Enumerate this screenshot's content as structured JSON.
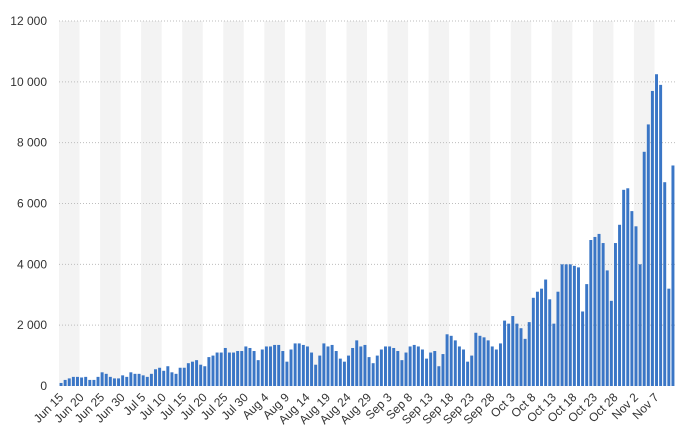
{
  "chart_data": {
    "type": "bar",
    "title": "",
    "xlabel": "",
    "ylabel": "",
    "ylim": [
      0,
      12000
    ],
    "yticks": [
      0,
      2000,
      4000,
      6000,
      8000,
      10000,
      12000
    ],
    "ytick_labels": [
      "0",
      "2 000",
      "4 000",
      "6 000",
      "8 000",
      "10 000",
      "12 000"
    ],
    "grid": true,
    "bar_color": "#3a76c6",
    "x_tick_labels": [
      {
        "label": "Jun 15",
        "index": 0
      },
      {
        "label": "Jun 20",
        "index": 5
      },
      {
        "label": "Jun 25",
        "index": 10
      },
      {
        "label": "Jun 30",
        "index": 15
      },
      {
        "label": "Jul 5",
        "index": 20
      },
      {
        "label": "Jul 10",
        "index": 25
      },
      {
        "label": "Jul 15",
        "index": 30
      },
      {
        "label": "Jul 20",
        "index": 35
      },
      {
        "label": "Jul 25",
        "index": 40
      },
      {
        "label": "Jul 30",
        "index": 45
      },
      {
        "label": "Aug 4",
        "index": 50
      },
      {
        "label": "Aug 9",
        "index": 55
      },
      {
        "label": "Aug 14",
        "index": 60
      },
      {
        "label": "Aug 19",
        "index": 65
      },
      {
        "label": "Aug 24",
        "index": 70
      },
      {
        "label": "Aug 29",
        "index": 75
      },
      {
        "label": "Sep 3",
        "index": 80
      },
      {
        "label": "Sep 8",
        "index": 85
      },
      {
        "label": "Sep 13",
        "index": 90
      },
      {
        "label": "Sep 18",
        "index": 95
      },
      {
        "label": "Sep 23",
        "index": 100
      },
      {
        "label": "Sep 28",
        "index": 105
      },
      {
        "label": "Oct 3",
        "index": 110
      },
      {
        "label": "Oct 8",
        "index": 115
      },
      {
        "label": "Oct 13",
        "index": 120
      },
      {
        "label": "Oct 18",
        "index": 125
      },
      {
        "label": "Oct 23",
        "index": 130
      },
      {
        "label": "Oct 28",
        "index": 135
      },
      {
        "label": "Nov 2",
        "index": 140
      },
      {
        "label": "Nov 7",
        "index": 145
      }
    ],
    "values": [
      100,
      200,
      250,
      300,
      300,
      280,
      300,
      200,
      200,
      300,
      450,
      400,
      300,
      250,
      250,
      350,
      300,
      450,
      400,
      400,
      350,
      300,
      400,
      550,
      600,
      500,
      650,
      450,
      400,
      600,
      600,
      750,
      800,
      850,
      700,
      650,
      950,
      1000,
      1100,
      1100,
      1250,
      1100,
      1100,
      1150,
      1150,
      1300,
      1250,
      1150,
      850,
      1200,
      1300,
      1300,
      1350,
      1350,
      1150,
      800,
      1200,
      1400,
      1400,
      1350,
      1300,
      1100,
      700,
      1000,
      1400,
      1300,
      1350,
      1150,
      900,
      800,
      1000,
      1250,
      1500,
      1300,
      1350,
      950,
      750,
      1000,
      1200,
      1300,
      1300,
      1250,
      1150,
      850,
      1100,
      1300,
      1350,
      1300,
      1200,
      900,
      1100,
      1150,
      650,
      1050,
      1700,
      1650,
      1500,
      1300,
      1200,
      800,
      1000,
      1750,
      1650,
      1600,
      1500,
      1300,
      1200,
      1400,
      2150,
      2050,
      2300,
      2050,
      1900,
      1550,
      2100,
      2900,
      3100,
      3200,
      3500,
      2850,
      2050,
      3100,
      4000,
      4000,
      4000,
      3950,
      3900,
      2450,
      3350,
      4800,
      4900,
      5000,
      4700,
      3800,
      2800,
      4700,
      5300,
      6450,
      6500,
      5750,
      5250,
      4000,
      7700,
      8600,
      9700,
      10250,
      9900,
      6700,
      3200,
      7250
    ]
  }
}
